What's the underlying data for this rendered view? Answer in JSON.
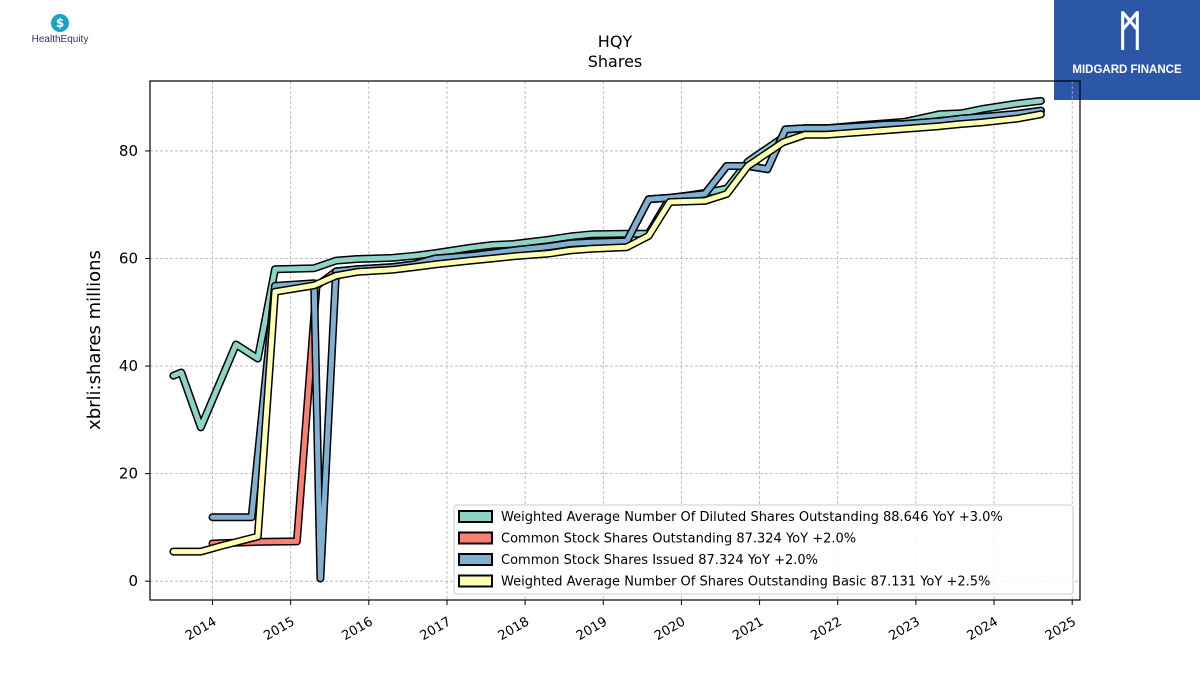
{
  "logos": {
    "left_text": "HealthEquity",
    "left_icon": "dollar-drop-icon",
    "right_text": "MIDGARD FINANCE",
    "right_icon": "midgard-m-icon"
  },
  "chart_data": {
    "type": "line",
    "title": "HQY",
    "subtitle": "Shares",
    "xlabel": "",
    "ylabel": "xbrli:shares millions",
    "xlim": [
      2013.2,
      2025.1
    ],
    "ylim": [
      -3.5,
      93
    ],
    "x_ticks": [
      2014,
      2015,
      2016,
      2017,
      2018,
      2019,
      2020,
      2021,
      2022,
      2023,
      2024,
      2025
    ],
    "y_ticks": [
      0,
      20,
      40,
      60,
      80
    ],
    "grid": true,
    "legend_position": "lower-right",
    "series": [
      {
        "name": "Weighted Average Number Of Diluted Shares Outstanding  88.646 YoY +3.0%",
        "color": "#8dd3c7",
        "points": [
          [
            2013.5,
            38.2
          ],
          [
            2013.6,
            38.8
          ],
          [
            2013.85,
            28.6
          ],
          [
            2014.3,
            44.0
          ],
          [
            2014.58,
            41.4
          ],
          [
            2014.8,
            58.0
          ],
          [
            2015.3,
            58.2
          ],
          [
            2015.58,
            59.6
          ],
          [
            2015.85,
            59.9
          ],
          [
            2016.3,
            60.1
          ],
          [
            2016.58,
            60.5
          ],
          [
            2016.85,
            61.0
          ],
          [
            2017.3,
            62.0
          ],
          [
            2017.58,
            62.5
          ],
          [
            2017.85,
            62.7
          ],
          [
            2018.3,
            63.5
          ],
          [
            2018.58,
            64.1
          ],
          [
            2018.85,
            64.5
          ],
          [
            2019.3,
            64.6
          ],
          [
            2019.58,
            64.6
          ],
          [
            2019.85,
            71.2
          ],
          [
            2020.3,
            72.2
          ],
          [
            2020.58,
            73.0
          ],
          [
            2020.85,
            78.0
          ],
          [
            2021.3,
            82.5
          ],
          [
            2021.58,
            84.2
          ],
          [
            2021.85,
            84.2
          ],
          [
            2022.3,
            84.8
          ],
          [
            2022.58,
            85.1
          ],
          [
            2022.85,
            85.4
          ],
          [
            2023.3,
            86.8
          ],
          [
            2023.58,
            87.0
          ],
          [
            2023.85,
            87.8
          ],
          [
            2024.3,
            88.8
          ],
          [
            2024.6,
            89.3
          ]
        ]
      },
      {
        "name": "Common Stock Shares Outstanding  87.324 YoY +2.0%",
        "color": "#fb8072",
        "points": [
          [
            2014.0,
            7.0
          ],
          [
            2014.58,
            7.3
          ],
          [
            2015.08,
            7.4
          ],
          [
            2015.33,
            54.9
          ],
          [
            2015.58,
            57.6
          ],
          [
            2015.85,
            58.0
          ],
          [
            2016.3,
            58.4
          ],
          [
            2016.58,
            58.9
          ],
          [
            2016.85,
            60.0
          ],
          [
            2017.3,
            60.5
          ],
          [
            2017.58,
            61.0
          ],
          [
            2017.85,
            61.5
          ],
          [
            2018.3,
            62.2
          ],
          [
            2018.58,
            62.8
          ],
          [
            2018.85,
            63.0
          ],
          [
            2019.3,
            63.2
          ],
          [
            2019.58,
            71.0
          ],
          [
            2019.85,
            71.3
          ],
          [
            2020.3,
            72.0
          ],
          [
            2020.58,
            77.2
          ],
          [
            2020.85,
            77.2
          ],
          [
            2021.1,
            76.6
          ],
          [
            2021.33,
            84.0
          ],
          [
            2021.58,
            84.2
          ],
          [
            2021.85,
            84.2
          ],
          [
            2022.3,
            84.6
          ],
          [
            2022.58,
            84.9
          ],
          [
            2022.85,
            85.0
          ],
          [
            2023.3,
            85.5
          ],
          [
            2023.58,
            86.0
          ],
          [
            2023.85,
            86.3
          ],
          [
            2024.3,
            86.9
          ],
          [
            2024.6,
            87.5
          ]
        ]
      },
      {
        "name": "Common Stock Shares Issued  87.324 YoY +2.0%",
        "color": "#80b1d3",
        "points": [
          [
            2014.0,
            11.9
          ],
          [
            2014.5,
            11.9
          ],
          [
            2014.8,
            54.9
          ],
          [
            2015.3,
            55.4
          ],
          [
            2015.38,
            0.5
          ],
          [
            2015.58,
            57.6
          ],
          [
            2015.85,
            58.0
          ],
          [
            2016.3,
            58.4
          ],
          [
            2016.58,
            58.9
          ],
          [
            2016.85,
            60.0
          ],
          [
            2017.3,
            60.5
          ],
          [
            2017.58,
            61.0
          ],
          [
            2017.85,
            61.5
          ],
          [
            2018.3,
            62.2
          ],
          [
            2018.58,
            62.8
          ],
          [
            2018.85,
            63.0
          ],
          [
            2019.3,
            63.2
          ],
          [
            2019.58,
            71.0
          ],
          [
            2019.85,
            71.3
          ],
          [
            2020.3,
            72.0
          ],
          [
            2020.58,
            77.2
          ],
          [
            2020.85,
            77.2
          ],
          [
            2021.1,
            76.6
          ],
          [
            2021.33,
            84.0
          ],
          [
            2021.58,
            84.2
          ],
          [
            2021.85,
            84.2
          ],
          [
            2022.3,
            84.6
          ],
          [
            2022.58,
            84.9
          ],
          [
            2022.85,
            85.0
          ],
          [
            2023.3,
            85.5
          ],
          [
            2023.58,
            86.0
          ],
          [
            2023.85,
            86.3
          ],
          [
            2024.3,
            86.9
          ],
          [
            2024.6,
            87.5
          ]
        ]
      },
      {
        "name": "Weighted Average Number Of Shares Outstanding Basic  87.131 YoY +2.5%",
        "color": "#ffffb3",
        "points": [
          [
            2013.5,
            5.5
          ],
          [
            2013.85,
            5.5
          ],
          [
            2014.1,
            6.5
          ],
          [
            2014.58,
            8.3
          ],
          [
            2014.8,
            53.8
          ],
          [
            2015.3,
            55.0
          ],
          [
            2015.58,
            56.8
          ],
          [
            2015.85,
            57.5
          ],
          [
            2016.3,
            57.9
          ],
          [
            2016.58,
            58.4
          ],
          [
            2016.85,
            58.9
          ],
          [
            2017.3,
            59.6
          ],
          [
            2017.58,
            60.0
          ],
          [
            2017.85,
            60.4
          ],
          [
            2018.3,
            60.9
          ],
          [
            2018.58,
            61.5
          ],
          [
            2018.85,
            61.8
          ],
          [
            2019.3,
            62.1
          ],
          [
            2019.58,
            64.2
          ],
          [
            2019.85,
            70.5
          ],
          [
            2020.3,
            70.7
          ],
          [
            2020.58,
            72.0
          ],
          [
            2020.85,
            77.2
          ],
          [
            2021.3,
            81.6
          ],
          [
            2021.58,
            83.0
          ],
          [
            2021.85,
            83.0
          ],
          [
            2022.3,
            83.5
          ],
          [
            2022.58,
            83.8
          ],
          [
            2022.85,
            84.1
          ],
          [
            2023.3,
            84.6
          ],
          [
            2023.58,
            85.0
          ],
          [
            2023.85,
            85.3
          ],
          [
            2024.3,
            86.0
          ],
          [
            2024.6,
            86.8
          ]
        ]
      }
    ]
  }
}
